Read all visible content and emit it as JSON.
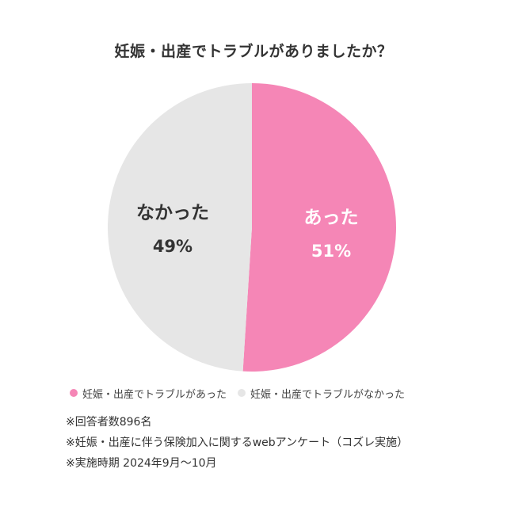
{
  "title": "妊娠・出産でトラブルがありましたか？",
  "colors": {
    "yes": "#f586b6",
    "no": "#e6e6e6",
    "label_on_yes": "#ffffff",
    "label_on_no": "#333333"
  },
  "chart_data": {
    "type": "pie",
    "slices": [
      {
        "label": "あった",
        "value": 51,
        "percent_text": "51%",
        "color": "#f586b6"
      },
      {
        "label": "なかった",
        "value": 49,
        "percent_text": "49%",
        "color": "#e6e6e6"
      }
    ],
    "legend_placement": "bottom",
    "legend": [
      {
        "text": "妊娠・出産でトラブルがあった",
        "color": "#f586b6"
      },
      {
        "text": "妊娠・出産でトラブルがなかった",
        "color": "#e6e6e6"
      }
    ]
  },
  "notes": [
    "※回答者数896名",
    "※妊娠・出産に伴う保険加入に関するwebアンケート（コズレ実施）",
    "※実施時期 2024年9月〜10月"
  ]
}
